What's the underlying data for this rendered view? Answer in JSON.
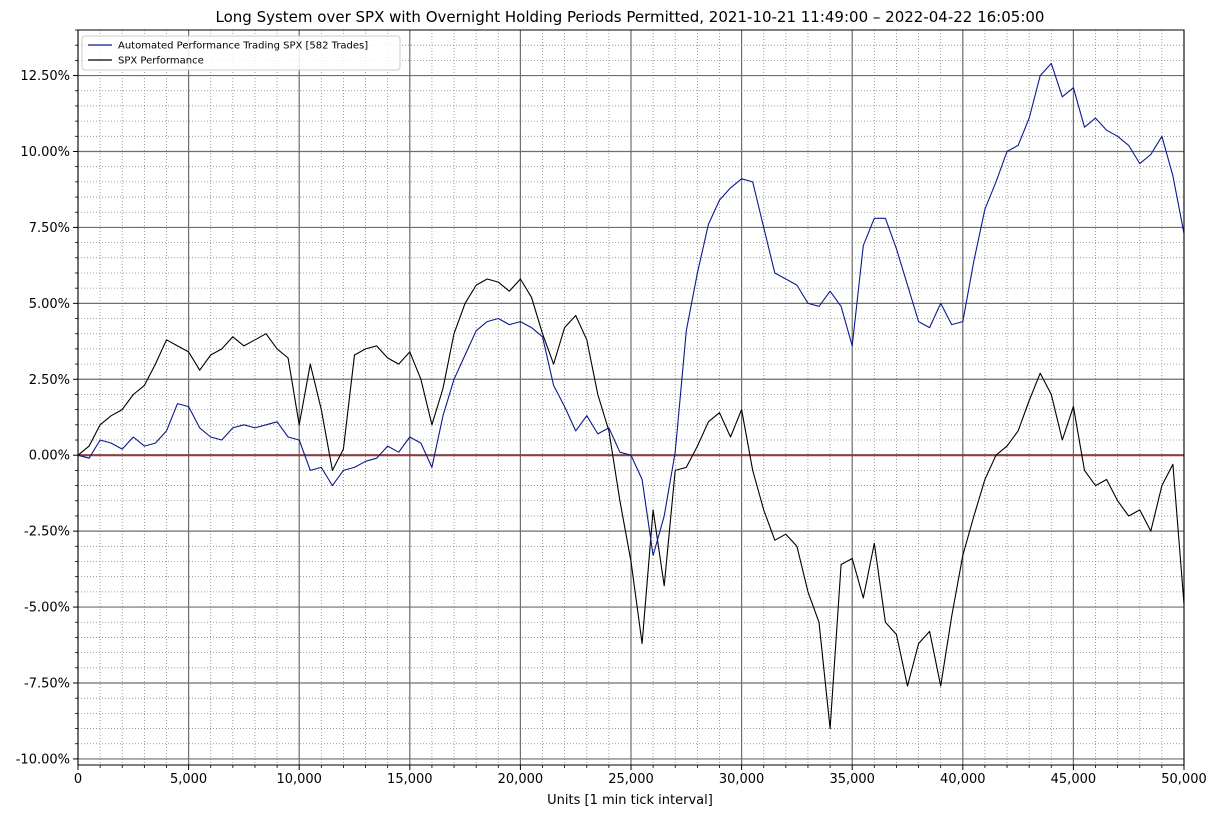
{
  "chart_data": {
    "type": "line",
    "title": "Long System over SPX with Overnight Holding Periods Permitted, 2021-10-21 11:49:00 – 2022-04-22 16:05:00",
    "xlabel": "Units [1 min tick interval]",
    "ylabel": "",
    "xlim": [
      0,
      50000
    ],
    "ylim": [
      -10.2,
      14
    ],
    "x_ticks": [
      0,
      5000,
      10000,
      15000,
      20000,
      25000,
      30000,
      35000,
      40000,
      45000,
      50000
    ],
    "x_tick_labels": [
      "0",
      "5,000",
      "10,000",
      "15,000",
      "20,000",
      "25,000",
      "30,000",
      "35,000",
      "40,000",
      "45,000",
      "50,000"
    ],
    "y_ticks": [
      -10,
      -7.5,
      -5,
      -2.5,
      0,
      2.5,
      5,
      7.5,
      10,
      12.5
    ],
    "y_tick_labels": [
      "-10.00%",
      "-7.50%",
      "-5.00%",
      "-2.50%",
      "0.00%",
      "2.50%",
      "5.00%",
      "7.50%",
      "10.00%",
      "12.50%"
    ],
    "grid": true,
    "legend_position": "top-left",
    "reference_line": {
      "y": 0,
      "color": "#8b4040"
    },
    "series": [
      {
        "name": "Automated Performance Trading SPX [582 Trades]",
        "color": "#0b1a8c",
        "x": [
          0,
          500,
          1000,
          1500,
          2000,
          2500,
          3000,
          3500,
          4000,
          4500,
          5000,
          5500,
          6000,
          6500,
          7000,
          7500,
          8000,
          8500,
          9000,
          9500,
          10000,
          10500,
          11000,
          11500,
          12000,
          12500,
          13000,
          13500,
          14000,
          14500,
          15000,
          15500,
          16000,
          16500,
          17000,
          17500,
          18000,
          18500,
          19000,
          19500,
          20000,
          20500,
          21000,
          21500,
          22000,
          22500,
          23000,
          23500,
          24000,
          24500,
          25000,
          25500,
          26000,
          26500,
          27000,
          27500,
          28000,
          28500,
          29000,
          29500,
          30000,
          30500,
          31000,
          31500,
          32000,
          32500,
          33000,
          33500,
          34000,
          34500,
          35000,
          35500,
          36000,
          36500,
          37000,
          37500,
          38000,
          38500,
          39000,
          39500,
          40000,
          40500,
          41000,
          41500,
          42000,
          42500,
          43000,
          43500,
          44000,
          44500,
          45000,
          45500,
          46000,
          46500,
          47000,
          47500,
          48000,
          48500,
          49000,
          49500,
          50000
        ],
        "y": [
          0,
          -0.1,
          0.5,
          0.4,
          0.2,
          0.6,
          0.3,
          0.4,
          0.8,
          1.7,
          1.6,
          0.9,
          0.6,
          0.5,
          0.9,
          1.0,
          0.9,
          1.0,
          1.1,
          0.6,
          0.5,
          -0.5,
          -0.4,
          -1.0,
          -0.5,
          -0.4,
          -0.2,
          -0.1,
          0.3,
          0.1,
          0.6,
          0.4,
          -0.4,
          1.3,
          2.5,
          3.3,
          4.1,
          4.4,
          4.5,
          4.3,
          4.4,
          4.2,
          3.9,
          2.3,
          1.6,
          0.8,
          1.3,
          0.7,
          0.9,
          0.1,
          0.0,
          -0.8,
          -3.3,
          -2.0,
          0.1,
          4.1,
          6.0,
          7.6,
          8.4,
          8.8,
          9.1,
          9.0,
          7.5,
          6.0,
          5.8,
          5.6,
          5.0,
          4.9,
          5.4,
          4.9,
          3.6,
          6.9,
          7.8,
          7.8,
          6.8,
          5.6,
          4.4,
          4.2,
          5.0,
          4.3,
          4.4,
          6.4,
          8.1,
          9.0,
          10.0,
          10.2,
          11.1,
          12.5,
          12.9,
          11.8,
          12.1,
          10.8,
          11.1,
          10.7,
          10.5,
          10.2,
          9.6,
          9.9,
          10.5,
          9.2,
          7.3
        ]
      },
      {
        "name": "SPX Performance",
        "color": "#000000",
        "x": [
          0,
          500,
          1000,
          1500,
          2000,
          2500,
          3000,
          3500,
          4000,
          4500,
          5000,
          5500,
          6000,
          6500,
          7000,
          7500,
          8000,
          8500,
          9000,
          9500,
          10000,
          10500,
          11000,
          11500,
          12000,
          12500,
          13000,
          13500,
          14000,
          14500,
          15000,
          15500,
          16000,
          16500,
          17000,
          17500,
          18000,
          18500,
          19000,
          19500,
          20000,
          20500,
          21000,
          21500,
          22000,
          22500,
          23000,
          23500,
          24000,
          24500,
          25000,
          25500,
          26000,
          26500,
          27000,
          27500,
          28000,
          28500,
          29000,
          29500,
          30000,
          30500,
          31000,
          31500,
          32000,
          32500,
          33000,
          33500,
          34000,
          34500,
          35000,
          35500,
          36000,
          36500,
          37000,
          37500,
          38000,
          38500,
          39000,
          39500,
          40000,
          40500,
          41000,
          41500,
          42000,
          42500,
          43000,
          43500,
          44000,
          44500,
          45000,
          45500,
          46000,
          46500,
          47000,
          47500,
          48000,
          48500,
          49000,
          49500,
          50000
        ],
        "y": [
          0,
          0.3,
          1.0,
          1.3,
          1.5,
          2.0,
          2.3,
          3.0,
          3.8,
          3.6,
          3.4,
          2.8,
          3.3,
          3.5,
          3.9,
          3.6,
          3.8,
          4.0,
          3.5,
          3.2,
          1.0,
          3.0,
          1.5,
          -0.5,
          0.2,
          3.3,
          3.5,
          3.6,
          3.2,
          3.0,
          3.4,
          2.5,
          1.0,
          2.2,
          4.0,
          5.0,
          5.6,
          5.8,
          5.7,
          5.4,
          5.8,
          5.2,
          4.0,
          3.0,
          4.2,
          4.6,
          3.8,
          2.0,
          0.8,
          -1.5,
          -3.5,
          -6.2,
          -1.8,
          -4.3,
          -0.5,
          -0.4,
          0.3,
          1.1,
          1.4,
          0.6,
          1.5,
          -0.5,
          -1.8,
          -2.8,
          -2.6,
          -3.0,
          -4.5,
          -5.5,
          -9.0,
          -3.6,
          -3.4,
          -4.7,
          -2.9,
          -5.5,
          -5.9,
          -7.6,
          -6.2,
          -5.8,
          -7.6,
          -5.3,
          -3.3,
          -2.0,
          -0.8,
          0.0,
          0.3,
          0.8,
          1.8,
          2.7,
          2.0,
          0.5,
          1.6,
          -0.5,
          -1.0,
          -0.8,
          -1.5,
          -2.0,
          -1.8,
          -2.5,
          -1.0,
          -0.3,
          -4.9
        ]
      }
    ]
  }
}
